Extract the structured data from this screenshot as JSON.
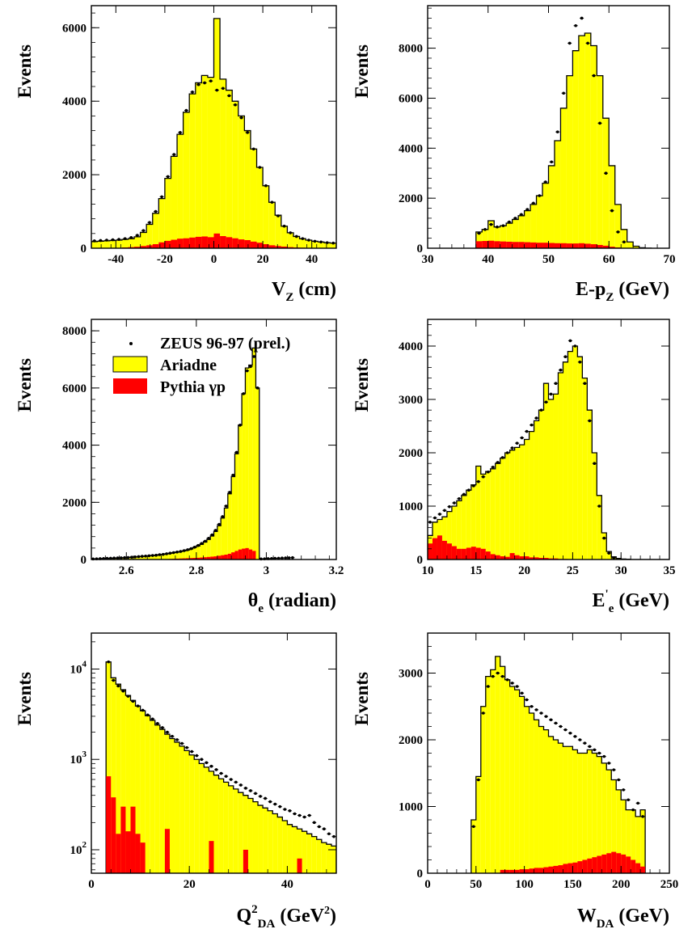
{
  "colors": {
    "mc_fill": "#ffff00",
    "bkg_fill": "#ff0000",
    "line": "#000000"
  },
  "legend": [
    {
      "kind": "points",
      "label": "ZEUS 96-97 (prel.)"
    },
    {
      "kind": "mc",
      "label": "Ariadne"
    },
    {
      "kind": "bkg",
      "label": "Pythia γp"
    }
  ],
  "chart_data": [
    {
      "type": "bar",
      "ylabel": "Events",
      "xlabel": "V",
      "xlabel_sub": "Z",
      "xlabel_tail": " (cm)",
      "xlim": [
        -50,
        50
      ],
      "ylim": [
        0,
        6600
      ],
      "log": false,
      "xticks": [
        -40,
        -20,
        0,
        20,
        40
      ],
      "yticks": [
        0,
        2000,
        4000,
        6000
      ],
      "bin_edges_start": -50,
      "bin_width": 2.5,
      "mc": [
        180,
        190,
        200,
        210,
        220,
        240,
        260,
        310,
        430,
        650,
        950,
        1350,
        1900,
        2500,
        3100,
        3700,
        4200,
        4500,
        4700,
        4650,
        6250,
        4600,
        4300,
        4000,
        3600,
        3200,
        2700,
        2200,
        1700,
        1250,
        900,
        600,
        420,
        320,
        260,
        220,
        190,
        170,
        150,
        140
      ],
      "bkg": [
        5,
        5,
        5,
        10,
        10,
        20,
        30,
        40,
        60,
        80,
        110,
        160,
        200,
        230,
        260,
        270,
        290,
        310,
        320,
        300,
        400,
        330,
        300,
        270,
        240,
        220,
        180,
        150,
        110,
        80,
        60,
        45,
        30,
        20,
        15,
        10,
        5,
        5,
        5,
        5
      ],
      "data_x": [
        -48.75,
        -46.25,
        -43.75,
        -41.25,
        -38.75,
        -36.25,
        -33.75,
        -31.25,
        -28.75,
        -26.25,
        -23.75,
        -21.25,
        -18.75,
        -16.25,
        -13.75,
        -11.25,
        -8.75,
        -6.25,
        -3.75,
        -1.25,
        1.25,
        3.75,
        6.25,
        8.75,
        11.25,
        13.75,
        16.25,
        18.75,
        21.25,
        23.75,
        26.25,
        28.75,
        31.25,
        33.75,
        36.25,
        38.75,
        41.25,
        43.75,
        46.25,
        48.75
      ],
      "data_y": [
        200,
        210,
        220,
        230,
        240,
        260,
        290,
        350,
        480,
        700,
        1000,
        1400,
        1950,
        2550,
        3150,
        3750,
        4250,
        4450,
        4500,
        4550,
        4300,
        4350,
        4150,
        3900,
        3550,
        3150,
        2700,
        2200,
        1700,
        1250,
        880,
        600,
        420,
        320,
        260,
        220,
        190,
        170,
        150,
        140
      ],
      "legend": false
    },
    {
      "type": "bar",
      "ylabel": "Events",
      "xlabel": "E-p",
      "xlabel_sub": "Z",
      "xlabel_tail": " (GeV)",
      "xlim": [
        30,
        70
      ],
      "ylim": [
        0,
        9700
      ],
      "log": false,
      "xticks": [
        30,
        40,
        50,
        60,
        70
      ],
      "yticks": [
        0,
        2000,
        4000,
        6000,
        8000
      ],
      "bin_edges_start": 38,
      "bin_width": 1,
      "mc": [
        650,
        750,
        1100,
        850,
        900,
        1000,
        1150,
        1300,
        1500,
        1750,
        2100,
        2600,
        3300,
        4300,
        5600,
        6900,
        7900,
        8500,
        8600,
        8100,
        6900,
        5200,
        3300,
        1750,
        750,
        250,
        80,
        20,
        5
      ],
      "bkg": [
        280,
        290,
        300,
        280,
        270,
        260,
        250,
        250,
        240,
        230,
        220,
        220,
        210,
        200,
        200,
        190,
        190,
        200,
        180,
        160,
        130,
        100,
        60,
        30,
        10,
        5,
        0,
        0,
        0
      ],
      "data_x": [
        38.5,
        39.5,
        40.5,
        41.5,
        42.5,
        43.5,
        44.5,
        45.5,
        46.5,
        47.5,
        48.5,
        49.5,
        50.5,
        51.5,
        52.5,
        53.5,
        54.5,
        55.5,
        56.5,
        57.5,
        58.5,
        59.5,
        60.5,
        61.5,
        62.5
      ],
      "data_y": [
        600,
        750,
        950,
        850,
        900,
        1050,
        1200,
        1350,
        1550,
        1800,
        2100,
        2650,
        3450,
        4650,
        6200,
        8200,
        8900,
        9200,
        8200,
        6900,
        5000,
        3000,
        1500,
        650,
        250
      ],
      "legend": false
    },
    {
      "type": "bar",
      "ylabel": "Events",
      "xlabel": "θ",
      "xlabel_sub": "e",
      "xlabel_tail": " (radian)",
      "xlim": [
        2.5,
        3.2
      ],
      "ylim": [
        0,
        8400
      ],
      "log": false,
      "xticks": [
        2.6,
        2.8,
        3.0,
        3.2
      ],
      "xtick_labels": [
        "2.6",
        "2.8",
        "3",
        "3.2"
      ],
      "yticks": [
        0,
        2000,
        4000,
        6000,
        8000
      ],
      "bin_edges_start": 2.5,
      "bin_width": 0.01,
      "mc": [
        15,
        20,
        25,
        30,
        35,
        40,
        45,
        50,
        55,
        60,
        70,
        80,
        90,
        100,
        110,
        120,
        130,
        140,
        150,
        170,
        180,
        200,
        220,
        240,
        260,
        280,
        300,
        330,
        370,
        420,
        470,
        530,
        610,
        700,
        820,
        980,
        1180,
        1450,
        1800,
        2300,
        2900,
        3700,
        4700,
        5800,
        6700,
        6800,
        7400,
        6000
      ],
      "bkg": [
        0,
        0,
        0,
        0,
        0,
        0,
        0,
        0,
        0,
        0,
        0,
        0,
        0,
        0,
        0,
        0,
        5,
        5,
        10,
        10,
        15,
        15,
        20,
        25,
        30,
        35,
        40,
        45,
        50,
        55,
        60,
        70,
        80,
        90,
        100,
        110,
        130,
        150,
        170,
        200,
        250,
        300,
        350,
        380,
        400,
        350,
        300,
        0
      ],
      "data_x": [
        2.505,
        2.515,
        2.525,
        2.535,
        2.545,
        2.555,
        2.565,
        2.575,
        2.585,
        2.595,
        2.605,
        2.615,
        2.625,
        2.635,
        2.645,
        2.655,
        2.665,
        2.675,
        2.685,
        2.695,
        2.705,
        2.715,
        2.725,
        2.735,
        2.745,
        2.755,
        2.765,
        2.775,
        2.785,
        2.795,
        2.805,
        2.815,
        2.825,
        2.835,
        2.845,
        2.855,
        2.865,
        2.875,
        2.885,
        2.895,
        2.905,
        2.915,
        2.925,
        2.935,
        2.945,
        2.955,
        2.965,
        2.975,
        2.985,
        2.995,
        3.005,
        3.015,
        3.025,
        3.035,
        3.045,
        3.055,
        3.065,
        3.075
      ],
      "data_y": [
        20,
        25,
        30,
        35,
        40,
        45,
        50,
        55,
        60,
        65,
        70,
        80,
        90,
        100,
        110,
        120,
        130,
        140,
        150,
        170,
        180,
        200,
        220,
        240,
        260,
        280,
        310,
        340,
        380,
        430,
        490,
        560,
        640,
        740,
        860,
        1020,
        1230,
        1500,
        1870,
        2350,
        2950,
        3750,
        4700,
        5800,
        6600,
        6750,
        7100,
        6000,
        20,
        25,
        30,
        35,
        40,
        45,
        50,
        55,
        60,
        65
      ],
      "legend": true
    },
    {
      "type": "bar",
      "ylabel": "Events",
      "xlabel": "E",
      "xlabel_sub": "e",
      "xlabel_sup": "'",
      "xlabel_tail": " (GeV)",
      "xlim": [
        10,
        35
      ],
      "ylim": [
        0,
        4500
      ],
      "log": false,
      "xticks": [
        10,
        15,
        20,
        25,
        30,
        35
      ],
      "yticks": [
        0,
        1000,
        2000,
        3000,
        4000
      ],
      "bin_edges_start": 10,
      "bin_width": 0.5,
      "mc": [
        450,
        700,
        750,
        800,
        900,
        1000,
        1100,
        1200,
        1300,
        1400,
        1750,
        1600,
        1650,
        1700,
        1800,
        1900,
        2000,
        2050,
        2100,
        2150,
        2250,
        2400,
        2600,
        2800,
        3300,
        3000,
        3100,
        3500,
        3700,
        3900,
        4000,
        3800,
        3400,
        2800,
        2000,
        1200,
        500,
        150,
        50,
        20,
        10,
        5,
        0,
        0,
        0,
        0,
        0,
        0,
        0,
        0
      ],
      "bkg": [
        300,
        400,
        450,
        350,
        300,
        250,
        200,
        200,
        220,
        240,
        220,
        200,
        150,
        100,
        80,
        60,
        50,
        120,
        80,
        60,
        60,
        40,
        40,
        30,
        30,
        20,
        20,
        10,
        10,
        5,
        5,
        5,
        0,
        0,
        0,
        0,
        0,
        0,
        0,
        0,
        0,
        0,
        0,
        0,
        0,
        0,
        0,
        0,
        0,
        0
      ],
      "data_x": [
        10.25,
        10.75,
        11.25,
        11.75,
        12.25,
        12.75,
        13.25,
        13.75,
        14.25,
        14.75,
        15.25,
        15.75,
        16.25,
        16.75,
        17.25,
        17.75,
        18.25,
        18.75,
        19.25,
        19.75,
        20.25,
        20.75,
        21.25,
        21.75,
        22.25,
        22.75,
        23.25,
        23.75,
        24.25,
        24.75,
        25.25,
        25.75,
        26.25,
        26.75,
        27.25,
        27.75,
        28.25,
        28.75,
        29.25
      ],
      "data_y": [
        700,
        780,
        850,
        920,
        990,
        1060,
        1140,
        1220,
        1300,
        1380,
        1460,
        1550,
        1640,
        1730,
        1820,
        1910,
        2000,
        2090,
        2180,
        2280,
        2400,
        2520,
        2650,
        2800,
        2950,
        3100,
        3300,
        3550,
        3800,
        4100,
        4000,
        3700,
        3300,
        2600,
        1800,
        1000,
        400,
        120,
        30
      ],
      "legend": false
    },
    {
      "type": "bar",
      "ylabel": "Events",
      "xlabel": "Q",
      "xlabel_sup": "2",
      "xlabel_sub": "DA",
      "xlabel_tail": " (GeV",
      "xlabel_tail_sup": "2",
      "xlabel_end": ")",
      "xlim": [
        0,
        50
      ],
      "ylim": [
        55,
        25000
      ],
      "log": true,
      "xticks": [
        0,
        20,
        40
      ],
      "yticks": [
        100,
        1000,
        10000
      ],
      "ytick_labels": [
        {
          "base": "10",
          "exp": "2"
        },
        {
          "base": "10",
          "exp": "3"
        },
        {
          "base": "10",
          "exp": "4"
        }
      ],
      "bin_edges_start": 3,
      "bin_width": 1,
      "mc": [
        12000,
        8000,
        6800,
        5900,
        5100,
        4500,
        3900,
        3450,
        3050,
        2700,
        2400,
        2150,
        1900,
        1700,
        1550,
        1400,
        1250,
        1120,
        1000,
        900,
        820,
        740,
        670,
        610,
        560,
        510,
        470,
        430,
        400,
        370,
        340,
        310,
        290,
        270,
        250,
        230,
        210,
        190,
        180,
        170,
        160,
        150,
        140,
        130,
        120,
        115,
        110
      ],
      "bkg": [
        650,
        380,
        150,
        300,
        160,
        300,
        150,
        120,
        55,
        55,
        55,
        55,
        170,
        55,
        55,
        55,
        55,
        55,
        55,
        55,
        55,
        125,
        55,
        55,
        55,
        55,
        55,
        55,
        100,
        55,
        55,
        55,
        55,
        55,
        55,
        55,
        55,
        55,
        55,
        80,
        55,
        55,
        55,
        55,
        55,
        55,
        55
      ],
      "data_x": [
        3.5,
        4.5,
        5.5,
        6.5,
        7.5,
        8.5,
        9.5,
        10.5,
        11.5,
        12.5,
        13.5,
        14.5,
        15.5,
        16.5,
        17.5,
        18.5,
        19.5,
        20.5,
        21.5,
        22.5,
        23.5,
        24.5,
        25.5,
        26.5,
        27.5,
        28.5,
        29.5,
        30.5,
        31.5,
        32.5,
        33.5,
        34.5,
        35.5,
        36.5,
        37.5,
        38.5,
        39.5,
        40.5,
        41.5,
        42.5,
        43.5,
        44.5,
        45.5,
        46.5,
        47.5,
        48.5,
        49.5
      ],
      "data_y": [
        12000,
        7500,
        6500,
        5700,
        5000,
        4400,
        3900,
        3500,
        3100,
        2800,
        2500,
        2250,
        2000,
        1800,
        1650,
        1500,
        1350,
        1220,
        1100,
        1000,
        920,
        840,
        770,
        700,
        650,
        600,
        560,
        520,
        480,
        450,
        420,
        390,
        370,
        340,
        320,
        300,
        280,
        270,
        250,
        240,
        230,
        240,
        200,
        180,
        170,
        150,
        140
      ],
      "legend": false
    },
    {
      "type": "bar",
      "ylabel": "Events",
      "xlabel": "W",
      "xlabel_sub": "DA",
      "xlabel_tail": " (GeV)",
      "xlim": [
        0,
        250
      ],
      "ylim": [
        0,
        3600
      ],
      "log": false,
      "xticks": [
        0,
        50,
        100,
        150,
        200,
        250
      ],
      "yticks": [
        0,
        1000,
        2000,
        3000
      ],
      "bin_edges_start": 45,
      "bin_width": 5,
      "mc": [
        800,
        1450,
        2500,
        2950,
        3050,
        3250,
        3100,
        2900,
        2800,
        2750,
        2650,
        2500,
        2400,
        2300,
        2200,
        2150,
        2050,
        2000,
        1950,
        1900,
        1900,
        1850,
        1800,
        1800,
        1850,
        1800,
        1750,
        1650,
        1550,
        1400,
        1250,
        1100,
        950,
        950,
        850,
        950
      ],
      "bkg": [
        0,
        0,
        0,
        0,
        0,
        0,
        50,
        50,
        50,
        50,
        60,
        60,
        70,
        80,
        80,
        90,
        100,
        110,
        120,
        140,
        150,
        160,
        180,
        200,
        220,
        240,
        260,
        280,
        300,
        320,
        300,
        280,
        250,
        200,
        150,
        100
      ],
      "data_x": [
        47.5,
        52.5,
        57.5,
        62.5,
        67.5,
        72.5,
        77.5,
        82.5,
        87.5,
        92.5,
        97.5,
        102.5,
        107.5,
        112.5,
        117.5,
        122.5,
        127.5,
        132.5,
        137.5,
        142.5,
        147.5,
        152.5,
        157.5,
        162.5,
        167.5,
        172.5,
        177.5,
        182.5,
        187.5,
        192.5,
        197.5,
        202.5,
        207.5,
        212.5,
        217.5,
        222.5
      ],
      "data_y": [
        700,
        1400,
        2400,
        2800,
        2950,
        3000,
        2950,
        2900,
        2850,
        2800,
        2700,
        2600,
        2500,
        2450,
        2400,
        2350,
        2300,
        2250,
        2200,
        2150,
        2100,
        2050,
        2000,
        1950,
        1900,
        1850,
        1800,
        1750,
        1650,
        1550,
        1400,
        1250,
        1100,
        950,
        1050,
        850
      ],
      "legend": false
    }
  ]
}
